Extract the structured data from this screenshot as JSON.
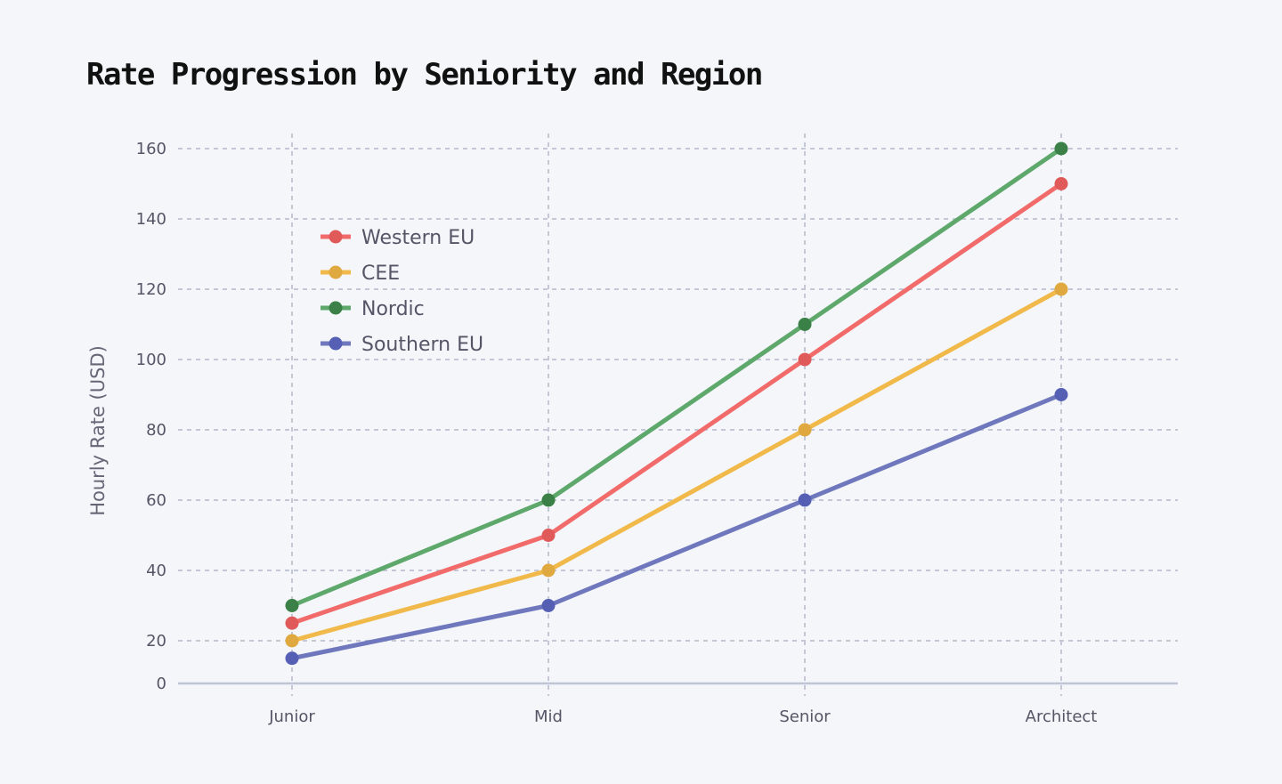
{
  "chart_data": {
    "type": "line",
    "title": "Rate Progression by Seniority and Region",
    "xlabel": "",
    "ylabel": "Hourly Rate (USD)",
    "categories": [
      "Junior",
      "Mid",
      "Senior",
      "Architect"
    ],
    "yticks": [
      0,
      20,
      40,
      60,
      80,
      100,
      120,
      140,
      160
    ],
    "grid": true,
    "legend_position": "top-left",
    "series": [
      {
        "name": "Western EU",
        "values": [
          25,
          50,
          100,
          150
        ],
        "line_color": "#f26b6b",
        "marker_color": "#e05a5a"
      },
      {
        "name": "CEE",
        "values": [
          20,
          40,
          80,
          120
        ],
        "line_color": "#f0b94a",
        "marker_color": "#e0a940"
      },
      {
        "name": "Nordic",
        "values": [
          30,
          60,
          110,
          160
        ],
        "line_color": "#5ea86c",
        "marker_color": "#3b8046"
      },
      {
        "name": "Southern EU",
        "values": [
          15,
          30,
          60,
          90
        ],
        "line_color": "#6f78bd",
        "marker_color": "#5560b5"
      }
    ]
  }
}
